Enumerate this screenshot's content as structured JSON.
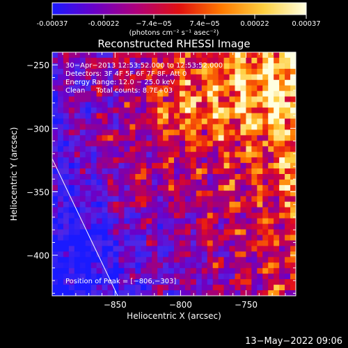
{
  "colorbar": {
    "ticks": [
      "-0.00037",
      "-0.00022",
      "−7.4e−05",
      "7.4e−05",
      "0.00022",
      "0.00037"
    ],
    "tick_values": [
      -0.00037,
      -0.00022,
      -7.4e-05,
      7.4e-05,
      0.00022,
      0.00037
    ],
    "range": [
      -0.00037,
      0.00037
    ],
    "units_label": "(photons cm⁻² s⁻¹ asec⁻²)",
    "colors": [
      "#1a1aff",
      "#6a00c8",
      "#b0007a",
      "#e01010",
      "#ff7a00",
      "#ffd040",
      "#ffffe0"
    ]
  },
  "chart_data": {
    "type": "heatmap",
    "title": "Reconstructed RHESSI Image",
    "xlabel": "Heliocentric X (arcsec)",
    "ylabel": "Heliocentric Y (arcsec)",
    "xlim": [
      -898,
      -712
    ],
    "ylim": [
      -432,
      -240
    ],
    "x_ticks": [
      -850,
      -800,
      -750
    ],
    "y_ticks": [
      -250,
      -300,
      -350,
      -400
    ],
    "x_tick_labels": [
      "−850",
      "−800",
      "−750"
    ],
    "y_tick_labels": [
      "−250",
      "−300",
      "−350",
      "−400"
    ],
    "peak_position": [
      -806,
      -303
    ],
    "limb_line": [
      [
        -898,
        -324
      ],
      [
        -848,
        -432
      ]
    ],
    "annotations": {
      "time_range": "30−Apr−2013 12:53:52.000 to 12:53:52.000",
      "detectors": "Detectors: 3F 4F 5F 6F 7F 8F, Att 0",
      "energy": "Energy Range: 12.0 − 25.0 keV",
      "method": "Clean     Total counts: 8.7E+03",
      "peak": "Position of Peak = [−806,−303]"
    }
  },
  "footer": {
    "timestamp": "13−May−2022 09:06"
  }
}
